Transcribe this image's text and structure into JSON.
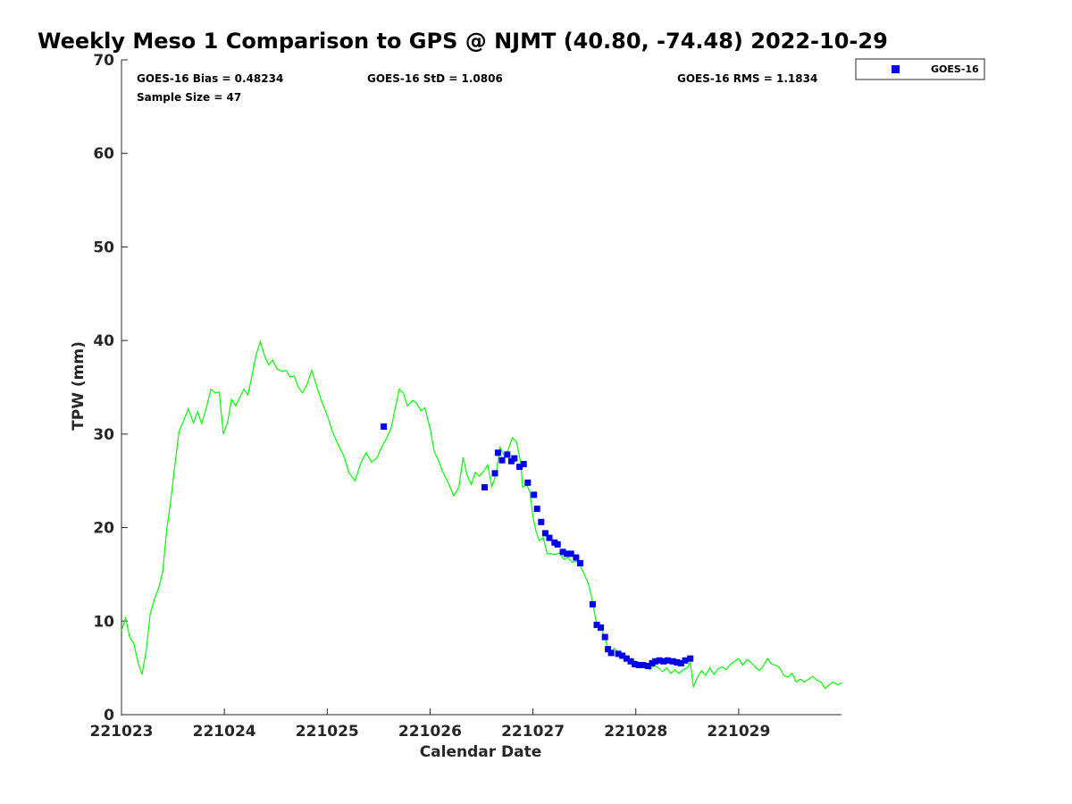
{
  "chart_data": {
    "type": "line+scatter",
    "title": "Weekly Meso 1 Comparison to GPS @ NJMT (40.80, -74.48) 2022-10-29",
    "xlabel": "Calendar Date",
    "ylabel": "TPW (mm)",
    "xlim": [
      0,
      7
    ],
    "ylim": [
      0,
      70
    ],
    "xticks": [
      {
        "value": 0,
        "label": "221023"
      },
      {
        "value": 1,
        "label": "221024"
      },
      {
        "value": 2,
        "label": "221025"
      },
      {
        "value": 3,
        "label": "221026"
      },
      {
        "value": 4,
        "label": "221027"
      },
      {
        "value": 5,
        "label": "221028"
      },
      {
        "value": 6,
        "label": "221029"
      }
    ],
    "yticks": [
      {
        "value": 0,
        "label": "0"
      },
      {
        "value": 10,
        "label": "10"
      },
      {
        "value": 20,
        "label": "20"
      },
      {
        "value": 30,
        "label": "30"
      },
      {
        "value": 40,
        "label": "40"
      },
      {
        "value": 50,
        "label": "50"
      },
      {
        "value": 60,
        "label": "60"
      },
      {
        "value": 70,
        "label": "70"
      }
    ],
    "stats": {
      "bias": "GOES-16 Bias = 0.48234",
      "std": "GOES-16 StD = 1.0806",
      "rms": "GOES-16 RMS = 1.1834",
      "sample": "Sample Size = 47"
    },
    "legend": {
      "label": "GOES-16",
      "placement": "top-right-outside"
    },
    "gps_series": {
      "name": "GPS",
      "color": "#00ff00",
      "points": [
        [
          0.0,
          9.0
        ],
        [
          0.04,
          10.3
        ],
        [
          0.08,
          8.3
        ],
        [
          0.12,
          7.6
        ],
        [
          0.16,
          5.6
        ],
        [
          0.2,
          4.3
        ],
        [
          0.24,
          6.8
        ],
        [
          0.28,
          10.8
        ],
        [
          0.32,
          12.3
        ],
        [
          0.36,
          13.5
        ],
        [
          0.4,
          15.3
        ],
        [
          0.44,
          19.8
        ],
        [
          0.48,
          23.0
        ],
        [
          0.52,
          26.8
        ],
        [
          0.56,
          30.3
        ],
        [
          0.6,
          31.3
        ],
        [
          0.65,
          32.7
        ],
        [
          0.7,
          31.2
        ],
        [
          0.74,
          32.4
        ],
        [
          0.78,
          31.1
        ],
        [
          0.82,
          32.6
        ],
        [
          0.87,
          34.8
        ],
        [
          0.91,
          34.4
        ],
        [
          0.95,
          34.5
        ],
        [
          0.99,
          30.0
        ],
        [
          1.03,
          31.2
        ],
        [
          1.07,
          33.7
        ],
        [
          1.11,
          33.0
        ],
        [
          1.15,
          33.9
        ],
        [
          1.19,
          34.8
        ],
        [
          1.23,
          34.2
        ],
        [
          1.27,
          36.3
        ],
        [
          1.31,
          38.5
        ],
        [
          1.35,
          39.9
        ],
        [
          1.39,
          38.4
        ],
        [
          1.43,
          37.4
        ],
        [
          1.47,
          37.9
        ],
        [
          1.51,
          37.0
        ],
        [
          1.56,
          36.7
        ],
        [
          1.6,
          36.8
        ],
        [
          1.64,
          36.1
        ],
        [
          1.68,
          36.2
        ],
        [
          1.72,
          35.0
        ],
        [
          1.76,
          34.4
        ],
        [
          1.8,
          35.2
        ],
        [
          1.85,
          36.8
        ],
        [
          1.9,
          35.0
        ],
        [
          1.95,
          33.4
        ],
        [
          2.0,
          32.0
        ],
        [
          2.05,
          30.3
        ],
        [
          2.1,
          29.0
        ],
        [
          2.16,
          27.7
        ],
        [
          2.21,
          25.9
        ],
        [
          2.27,
          25.0
        ],
        [
          2.33,
          27.0
        ],
        [
          2.38,
          28.0
        ],
        [
          2.43,
          27.0
        ],
        [
          2.48,
          27.4
        ],
        [
          2.53,
          28.6
        ],
        [
          2.57,
          29.4
        ],
        [
          2.62,
          30.6
        ],
        [
          2.66,
          32.7
        ],
        [
          2.7,
          34.8
        ],
        [
          2.74,
          34.4
        ],
        [
          2.78,
          33.0
        ],
        [
          2.83,
          33.6
        ],
        [
          2.87,
          33.3
        ],
        [
          2.91,
          32.5
        ],
        [
          2.95,
          32.8
        ],
        [
          3.0,
          30.6
        ],
        [
          3.04,
          28.2
        ],
        [
          3.08,
          27.2
        ],
        [
          3.13,
          25.8
        ],
        [
          3.18,
          24.7
        ],
        [
          3.23,
          23.4
        ],
        [
          3.28,
          24.3
        ],
        [
          3.32,
          27.5
        ],
        [
          3.36,
          25.6
        ],
        [
          3.4,
          24.6
        ],
        [
          3.44,
          25.9
        ],
        [
          3.48,
          25.5
        ],
        [
          3.52,
          26.0
        ],
        [
          3.56,
          26.7
        ],
        [
          3.6,
          24.4
        ],
        [
          3.64,
          25.6
        ],
        [
          3.68,
          28.6
        ],
        [
          3.72,
          27.7
        ],
        [
          3.76,
          28.3
        ],
        [
          3.8,
          29.6
        ],
        [
          3.84,
          29.2
        ],
        [
          3.88,
          27.0
        ],
        [
          3.9,
          24.3
        ],
        [
          3.94,
          24.6
        ],
        [
          3.97,
          23.8
        ],
        [
          4.0,
          21.2
        ],
        [
          4.03,
          19.6
        ],
        [
          4.06,
          18.6
        ],
        [
          4.1,
          18.9
        ],
        [
          4.14,
          17.2
        ],
        [
          4.18,
          17.2
        ],
        [
          4.22,
          17.1
        ],
        [
          4.26,
          17.3
        ],
        [
          4.3,
          16.6
        ],
        [
          4.34,
          16.8
        ],
        [
          4.38,
          16.3
        ],
        [
          4.42,
          16.4
        ],
        [
          4.46,
          15.9
        ],
        [
          4.5,
          15.0
        ],
        [
          4.54,
          14.0
        ],
        [
          4.58,
          12.0
        ],
        [
          4.61,
          10.2
        ],
        [
          4.64,
          9.0
        ],
        [
          4.67,
          9.1
        ],
        [
          4.7,
          8.1
        ],
        [
          4.73,
          7.2
        ],
        [
          4.76,
          6.4
        ],
        [
          4.79,
          7.1
        ],
        [
          4.82,
          6.8
        ],
        [
          4.86,
          6.4
        ],
        [
          4.9,
          6.3
        ],
        [
          4.94,
          6.0
        ],
        [
          4.98,
          5.8
        ],
        [
          5.02,
          5.6
        ],
        [
          5.06,
          5.0
        ],
        [
          5.1,
          5.2
        ],
        [
          5.14,
          4.8
        ],
        [
          5.18,
          5.3
        ],
        [
          5.22,
          5.0
        ],
        [
          5.26,
          4.6
        ],
        [
          5.3,
          5.0
        ],
        [
          5.34,
          4.4
        ],
        [
          5.38,
          4.8
        ],
        [
          5.42,
          4.4
        ],
        [
          5.46,
          4.8
        ],
        [
          5.5,
          5.0
        ],
        [
          5.53,
          5.6
        ],
        [
          5.56,
          3.0
        ],
        [
          5.6,
          4.0
        ],
        [
          5.64,
          4.7
        ],
        [
          5.68,
          4.2
        ],
        [
          5.72,
          5.0
        ],
        [
          5.76,
          4.3
        ],
        [
          5.8,
          4.9
        ],
        [
          5.84,
          5.1
        ],
        [
          5.88,
          4.8
        ],
        [
          5.92,
          5.4
        ],
        [
          5.96,
          5.7
        ],
        [
          6.0,
          6.0
        ],
        [
          6.04,
          5.3
        ],
        [
          6.08,
          5.9
        ],
        [
          6.12,
          5.6
        ],
        [
          6.16,
          5.1
        ],
        [
          6.2,
          4.7
        ],
        [
          6.24,
          5.2
        ],
        [
          6.28,
          6.0
        ],
        [
          6.32,
          5.4
        ],
        [
          6.36,
          5.3
        ],
        [
          6.4,
          5.0
        ],
        [
          6.44,
          4.2
        ],
        [
          6.48,
          4.0
        ],
        [
          6.52,
          4.4
        ],
        [
          6.56,
          3.5
        ],
        [
          6.6,
          3.8
        ],
        [
          6.64,
          3.5
        ],
        [
          6.68,
          3.8
        ],
        [
          6.72,
          4.1
        ],
        [
          6.76,
          3.7
        ],
        [
          6.8,
          3.5
        ],
        [
          6.84,
          2.8
        ],
        [
          6.88,
          3.2
        ],
        [
          6.92,
          3.5
        ],
        [
          6.96,
          3.2
        ],
        [
          7.0,
          3.4
        ]
      ]
    },
    "goes_series": {
      "name": "GOES-16",
      "color": "#0000ee",
      "points": [
        [
          2.55,
          30.8
        ],
        [
          3.53,
          24.3
        ],
        [
          3.63,
          25.8
        ],
        [
          3.66,
          28.0
        ],
        [
          3.7,
          27.2
        ],
        [
          3.75,
          27.8
        ],
        [
          3.79,
          27.1
        ],
        [
          3.82,
          27.4
        ],
        [
          3.87,
          26.5
        ],
        [
          3.91,
          26.8
        ],
        [
          3.95,
          24.8
        ],
        [
          4.01,
          23.5
        ],
        [
          4.04,
          22.0
        ],
        [
          4.08,
          20.6
        ],
        [
          4.12,
          19.4
        ],
        [
          4.16,
          18.9
        ],
        [
          4.21,
          18.4
        ],
        [
          4.24,
          18.2
        ],
        [
          4.29,
          17.4
        ],
        [
          4.33,
          17.2
        ],
        [
          4.37,
          17.2
        ],
        [
          4.42,
          16.8
        ],
        [
          4.46,
          16.2
        ],
        [
          4.58,
          11.8
        ],
        [
          4.62,
          9.6
        ],
        [
          4.66,
          9.3
        ],
        [
          4.7,
          8.3
        ],
        [
          4.73,
          7.0
        ],
        [
          4.76,
          6.6
        ],
        [
          4.83,
          6.5
        ],
        [
          4.87,
          6.3
        ],
        [
          4.91,
          6.0
        ],
        [
          4.95,
          5.7
        ],
        [
          4.99,
          5.4
        ],
        [
          5.03,
          5.3
        ],
        [
          5.07,
          5.3
        ],
        [
          5.12,
          5.2
        ],
        [
          5.16,
          5.5
        ],
        [
          5.19,
          5.7
        ],
        [
          5.23,
          5.8
        ],
        [
          5.27,
          5.7
        ],
        [
          5.31,
          5.8
        ],
        [
          5.36,
          5.7
        ],
        [
          5.4,
          5.6
        ],
        [
          5.44,
          5.5
        ],
        [
          5.48,
          5.8
        ],
        [
          5.53,
          6.0
        ]
      ]
    }
  }
}
